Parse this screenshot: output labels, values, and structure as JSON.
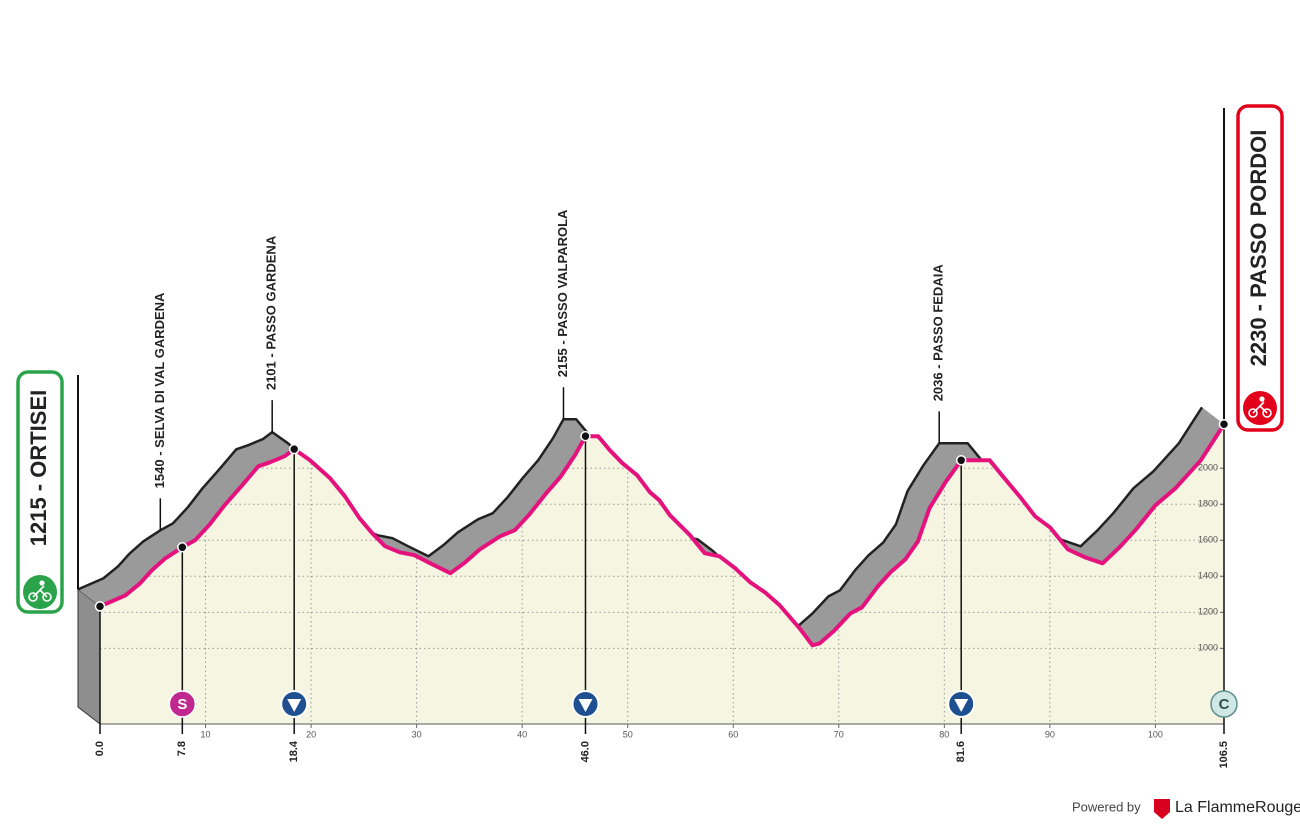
{
  "chart_data": {
    "type": "area",
    "start": "1215 - ORTISEI",
    "finish": "2230 - PASSO PORDOI",
    "x": [
      0,
      2.4,
      3.8,
      4.9,
      6.2,
      7.8,
      9.0,
      10.4,
      11.8,
      13.3,
      15.0,
      16.1,
      17.5,
      18.4,
      19.9,
      21.8,
      23.2,
      24.6,
      25.8,
      27.0,
      28.4,
      29.8,
      31.3,
      33.2,
      34.6,
      36.0,
      37.9,
      39.3,
      40.7,
      42.2,
      43.6,
      45.0,
      46.0,
      47.2,
      48.3,
      49.5,
      50.9,
      52.1,
      53.0,
      54.0,
      55.9,
      57.3,
      58.7,
      60.2,
      61.6,
      63.0,
      64.4,
      66.3,
      67.5,
      68.2,
      69.6,
      71.1,
      72.2,
      73.7,
      74.9,
      76.3,
      77.5,
      78.6,
      80.1,
      81.6,
      84.3,
      85.7,
      87.2,
      88.6,
      90.0,
      91.7,
      93.3,
      95.0,
      96.6,
      98.1,
      100.0,
      101.9,
      104.3,
      106.5
    ],
    "values": [
      1233,
      1294,
      1361,
      1433,
      1500,
      1561,
      1600,
      1689,
      1794,
      1894,
      2011,
      2033,
      2067,
      2106,
      2044,
      1944,
      1844,
      1722,
      1639,
      1567,
      1533,
      1517,
      1472,
      1417,
      1478,
      1550,
      1622,
      1656,
      1744,
      1856,
      1950,
      2072,
      2178,
      2178,
      2100,
      2028,
      1961,
      1867,
      1822,
      1739,
      1628,
      1528,
      1511,
      1444,
      1367,
      1311,
      1239,
      1111,
      1017,
      1028,
      1100,
      1194,
      1228,
      1344,
      1422,
      1494,
      1594,
      1778,
      1922,
      2044,
      2044,
      1944,
      1839,
      1733,
      1672,
      1550,
      1506,
      1472,
      1561,
      1656,
      1794,
      1889,
      2044,
      2244
    ],
    "color": "#e5127d",
    "xlim": [
      0,
      106.5
    ],
    "ylim": [
      580,
      4000
    ],
    "xticks": [
      10,
      20,
      30,
      40,
      50,
      60,
      70,
      80,
      90,
      100
    ],
    "yticks": [
      1000,
      1200,
      1400,
      1600,
      1800,
      2000
    ],
    "grid": true,
    "waypoints": [
      {
        "km": {
          "value": 0,
          "label": "0.0"
        }
      },
      {
        "km": 7.8,
        "badge": "S",
        "label": "1540 - SELVA DI VAL GARDENA"
      },
      {
        "km": 18.4,
        "climb": true,
        "label": "2101 - PASSO GARDENA"
      },
      {
        "km": {
          "value": 46,
          "label": "46.0"
        },
        "climb": true,
        "label": "2155 - PASSO VALPAROLA"
      },
      {
        "km": 81.6,
        "climb": true,
        "label": "2036 - PASSO FEDAIA"
      },
      {
        "km": 106.5,
        "badge": "C"
      }
    ]
  },
  "footer": {
    "powered_by": "Powered by",
    "brand": "La FlammeRouge"
  }
}
